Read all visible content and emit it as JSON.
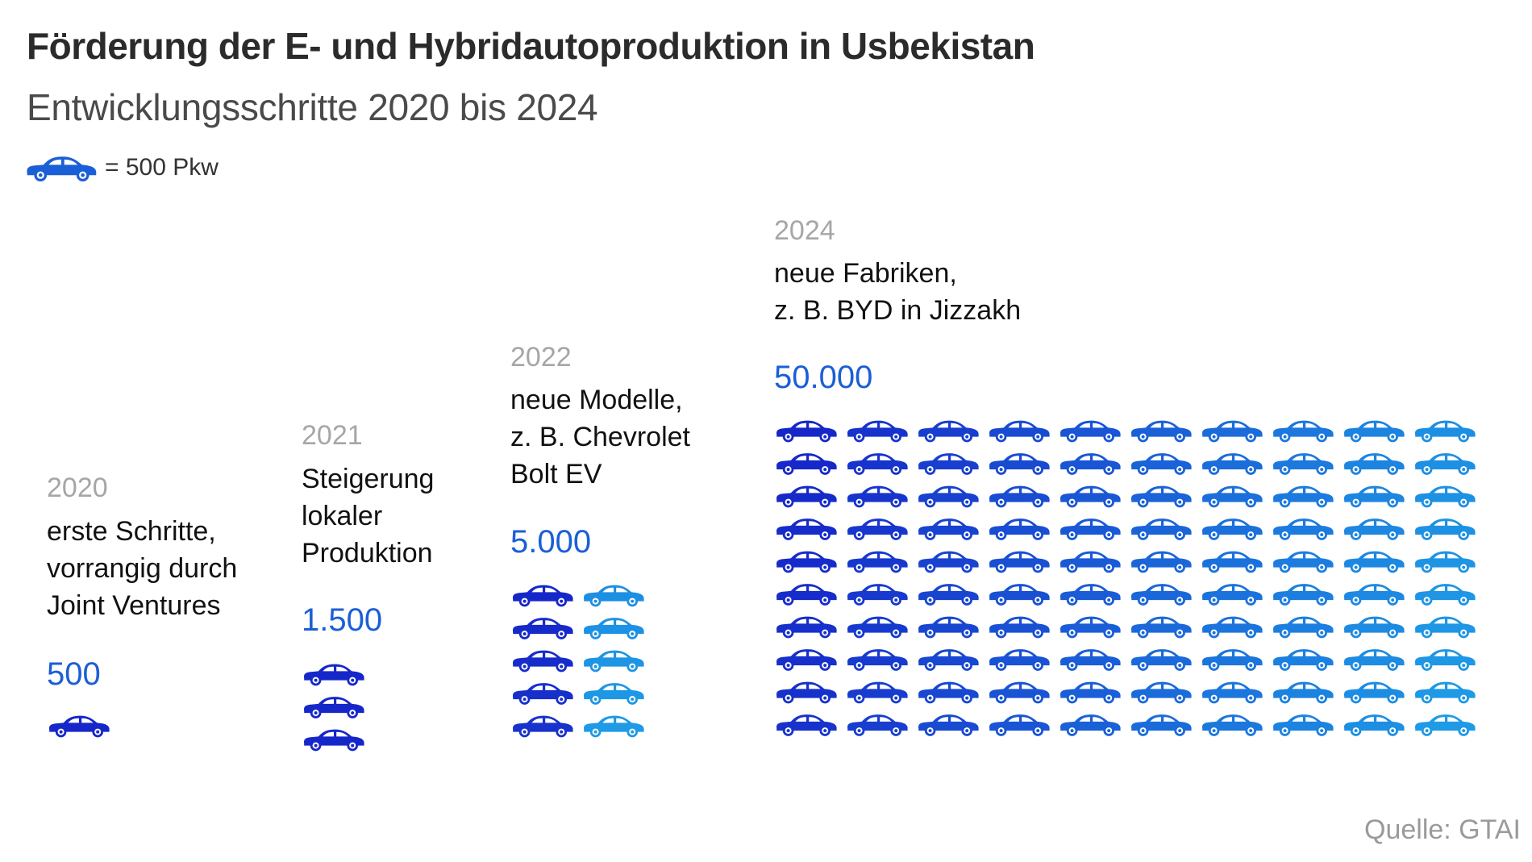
{
  "header": {
    "title": "Förderung der E- und Hybridautoproduktion in Usbekistan",
    "subtitle": "Entwicklungsschritte 2020 bis 2024"
  },
  "legend": {
    "icon": "car-icon",
    "label": "= 500 Pkw",
    "color": "#1b5fd6"
  },
  "source": "Quelle: GTAI",
  "colors": {
    "car_dark": "#1627c9",
    "car_light": "#1e9ae6",
    "year": "#a6a6a6",
    "value": "#1b5fd6"
  },
  "chart_data": {
    "type": "pictogram",
    "unit_per_icon": 500,
    "unit_label": "Pkw",
    "entries": [
      {
        "year": "2020",
        "lines": [
          "erste Schritte,",
          "vorrangig durch",
          "Joint Ventures"
        ],
        "value": 500,
        "value_label": "500",
        "icons": 1,
        "columns": 1
      },
      {
        "year": "2021",
        "lines": [
          "Steigerung",
          "lokaler",
          "Produktion"
        ],
        "value": 1500,
        "value_label": "1.500",
        "icons": 3,
        "columns": 1
      },
      {
        "year": "2022",
        "lines": [
          "neue Modelle,",
          "z. B. Chevrolet",
          "Bolt EV"
        ],
        "value": 5000,
        "value_label": "5.000",
        "icons": 10,
        "columns": 2
      },
      {
        "year": "2024",
        "lines": [
          "neue Fabriken,",
          "z. B. BYD in Jizzakh"
        ],
        "value": 50000,
        "value_label": "50.000",
        "icons": 100,
        "columns": 10
      }
    ]
  }
}
